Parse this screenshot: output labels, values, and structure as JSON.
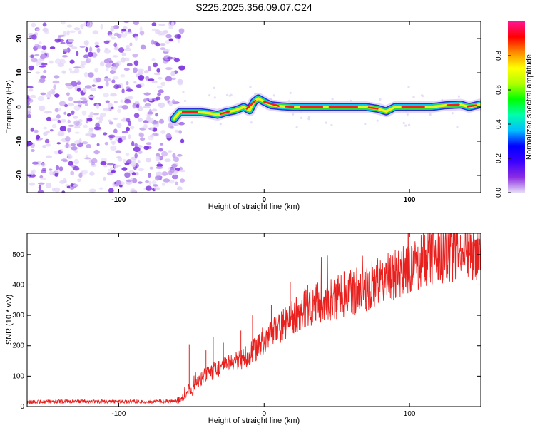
{
  "page_title": "S225.2025.356.09.07.C24",
  "chart_data": [
    {
      "type": "heatmap",
      "id": "spectrogram",
      "xlabel": "Height of straight line (km)",
      "ylabel": "Frequency (Hz)",
      "xlim": [
        -163,
        149
      ],
      "ylim": [
        -25,
        25
      ],
      "xticks": [
        -100,
        0,
        100
      ],
      "yticks": [
        -20,
        -10,
        0,
        10,
        20
      ],
      "colorbar": {
        "label": "Normalized spectral amplitude",
        "range": [
          0,
          1
        ],
        "ticks": [
          "0.0",
          "0.2",
          "0.4",
          "0.6",
          "0.8"
        ],
        "colors": [
          "#e6dcf7",
          "#8a2be2",
          "#3b00ff",
          "#0000ff",
          "#00bfff",
          "#00ffaa",
          "#00ff00",
          "#b0ff00",
          "#ffff00",
          "#ff8c00",
          "#ff0000",
          "#ff1493"
        ]
      },
      "noise_region_x": [
        -163,
        -60
      ],
      "ridge": [
        {
          "x": -62,
          "f": -3.5
        },
        {
          "x": -58,
          "f": -1.5
        },
        {
          "x": -52,
          "f": -1.5
        },
        {
          "x": -44,
          "f": -1.5
        },
        {
          "x": -38,
          "f": -1.8
        },
        {
          "x": -32,
          "f": -2.3
        },
        {
          "x": -26,
          "f": -1.5
        },
        {
          "x": -20,
          "f": -1.0
        },
        {
          "x": -14,
          "f": 0.0
        },
        {
          "x": -10,
          "f": -1.0
        },
        {
          "x": -7,
          "f": 1.5
        },
        {
          "x": -4,
          "f": 2.5
        },
        {
          "x": 0,
          "f": 1.5
        },
        {
          "x": 5,
          "f": 0.5
        },
        {
          "x": 12,
          "f": 0.2
        },
        {
          "x": 20,
          "f": 0.0
        },
        {
          "x": 40,
          "f": 0.0
        },
        {
          "x": 60,
          "f": 0.0
        },
        {
          "x": 70,
          "f": 0.0
        },
        {
          "x": 78,
          "f": -0.5
        },
        {
          "x": 84,
          "f": -1.3
        },
        {
          "x": 90,
          "f": 0.0
        },
        {
          "x": 100,
          "f": 0.0
        },
        {
          "x": 115,
          "f": 0.0
        },
        {
          "x": 125,
          "f": 0.5
        },
        {
          "x": 135,
          "f": 0.7
        },
        {
          "x": 141,
          "f": 0.0
        },
        {
          "x": 149,
          "f": 0.8
        }
      ]
    },
    {
      "type": "line",
      "id": "snr",
      "xlabel": "Height of straight line (km)",
      "ylabel": "SNR (10 * v/v)",
      "xlim": [
        -163,
        149
      ],
      "ylim": [
        0,
        570
      ],
      "xticks": [
        -100,
        0,
        100
      ],
      "yticks": [
        0,
        100,
        200,
        300,
        400,
        500
      ],
      "color": "#e8201e",
      "series": [
        {
          "name": "SNR",
          "x": [
            -163,
            -140,
            -120,
            -100,
            -80,
            -60,
            -55,
            -52,
            -50,
            -45,
            -40,
            -30,
            -20,
            -10,
            0,
            10,
            20,
            30,
            40,
            50,
            60,
            70,
            80,
            90,
            100,
            110,
            120,
            130,
            140,
            149
          ],
          "y": [
            15,
            17,
            17,
            16,
            16,
            18,
            30,
            60,
            45,
            85,
            105,
            130,
            145,
            170,
            220,
            255,
            300,
            330,
            345,
            360,
            375,
            390,
            410,
            435,
            450,
            485,
            500,
            505,
            515,
            510
          ]
        }
      ],
      "noise_spikes": [
        {
          "x": -51.5,
          "y": 205
        },
        {
          "x": -40,
          "y": 185
        },
        {
          "x": -35,
          "y": 230
        },
        {
          "x": -28,
          "y": 210
        },
        {
          "x": -16,
          "y": 250
        },
        {
          "x": -8,
          "y": 300
        },
        {
          "x": 5,
          "y": 335
        },
        {
          "x": 18,
          "y": 410
        },
        {
          "x": 30,
          "y": 400
        },
        {
          "x": 55,
          "y": 445
        },
        {
          "x": 78,
          "y": 490
        },
        {
          "x": 110,
          "y": 545
        },
        {
          "x": 135,
          "y": 565
        }
      ]
    }
  ]
}
